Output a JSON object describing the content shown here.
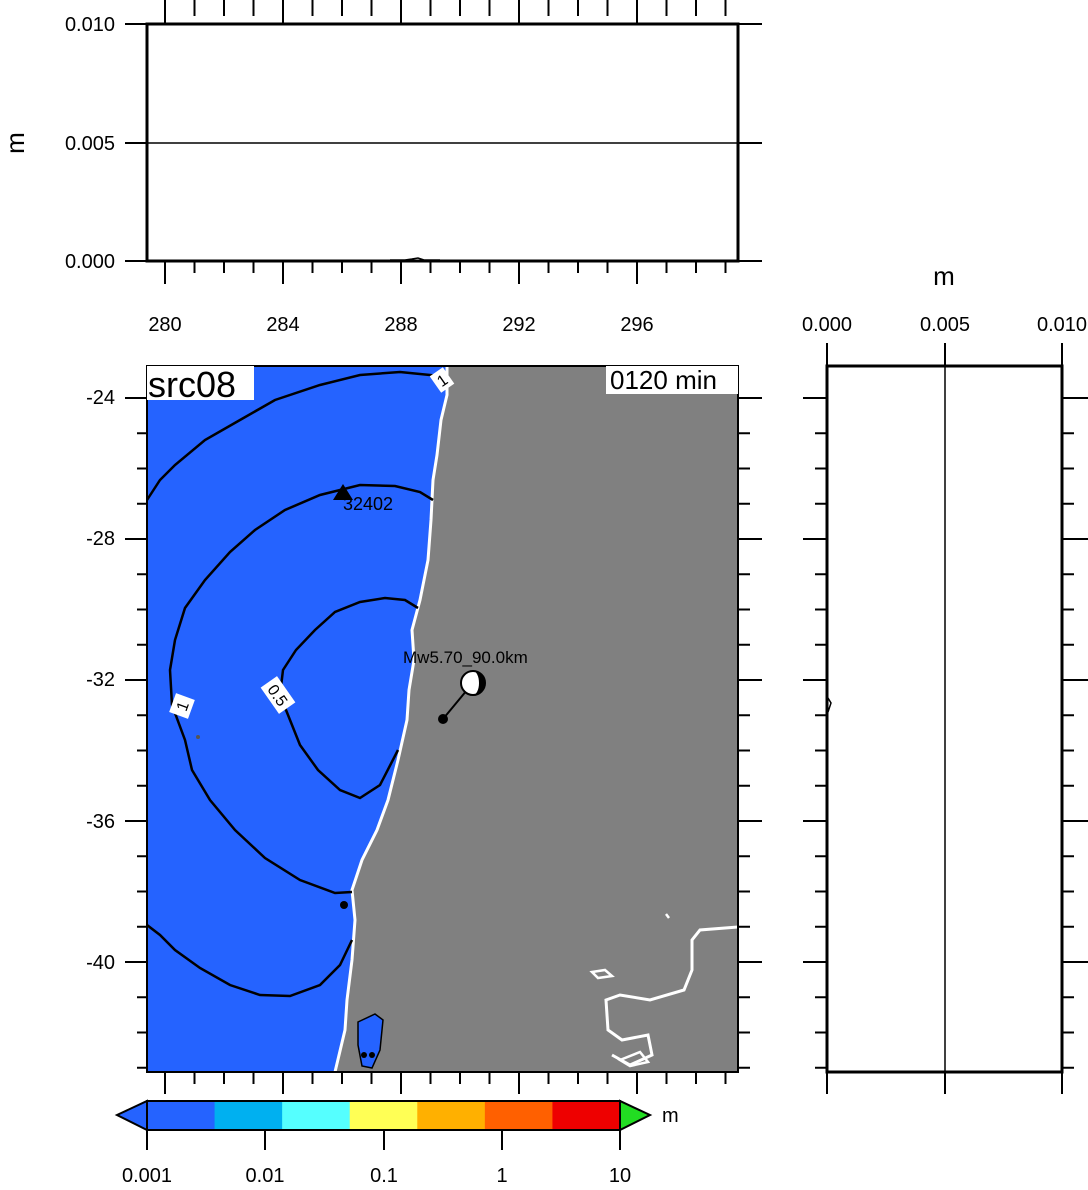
{
  "top_panel": {
    "ylabel": "m",
    "y_ticks": [
      "0.010",
      "0.005",
      "0.000"
    ]
  },
  "map": {
    "title": "src08",
    "time_label": "0120 min",
    "x_ticks": [
      "280",
      "284",
      "288",
      "292",
      "296"
    ],
    "y_ticks": [
      "-24",
      "-28",
      "-32",
      "-36",
      "-40"
    ],
    "station_label": "32402",
    "source_label": "Mw5.70_90.0km",
    "contour_labels": [
      "1",
      "0.5",
      "1"
    ],
    "ocean_color": "#2563ff",
    "land_color": "#808080"
  },
  "right_panel": {
    "xlabel": "m",
    "x_ticks": [
      "0.000",
      "0.005",
      "0.010"
    ]
  },
  "colorbar": {
    "unit": "m",
    "tick_labels": [
      "0.001",
      "0.01",
      "0.1",
      "1",
      "10"
    ],
    "colors": [
      "#2563ff",
      "#00b0f0",
      "#55ffff",
      "#ffff55",
      "#ffb000",
      "#ff6000",
      "#ee0000"
    ],
    "low_color": "#2563ff",
    "high_color": "#22dd22"
  }
}
